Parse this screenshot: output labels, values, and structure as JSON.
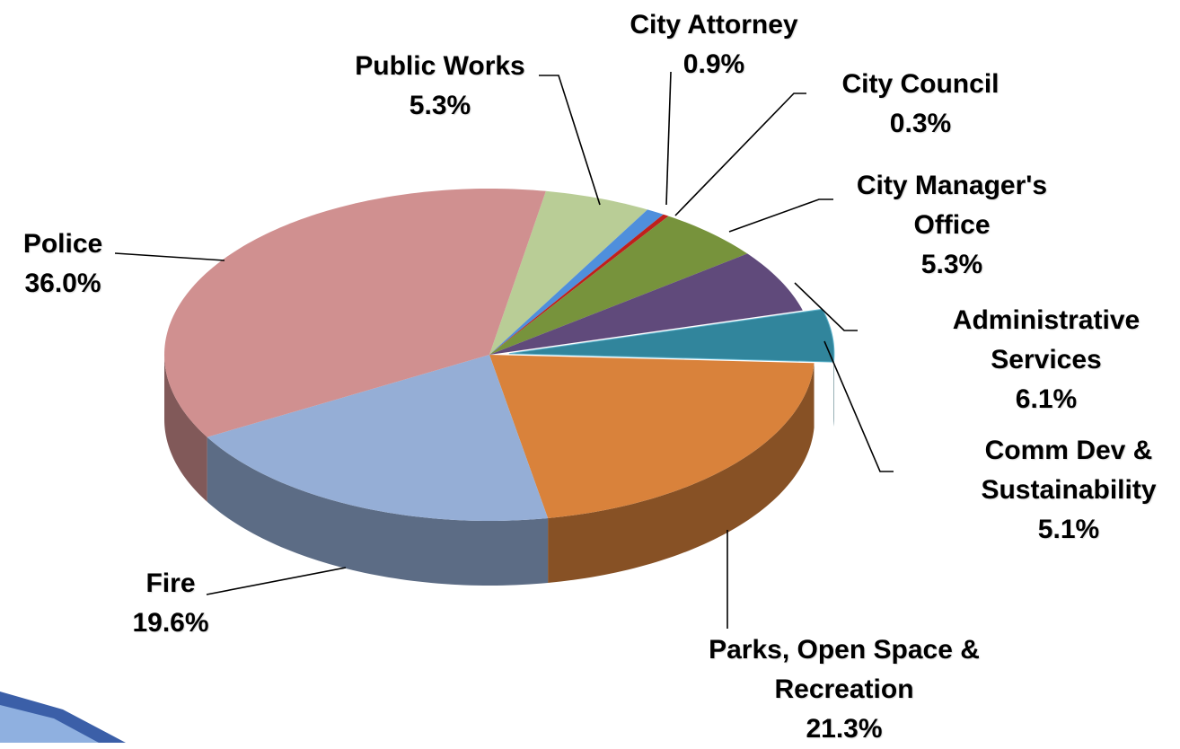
{
  "chart_data": {
    "type": "pie3d",
    "categories": [
      "Public Works",
      "City Attorney",
      "City Council",
      "City Manager's Office",
      "Administrative Services",
      "Comm Dev & Sustainability",
      "Parks, Open Space & Recreation",
      "Fire",
      "Police"
    ],
    "values": [
      5.3,
      0.9,
      0.3,
      5.3,
      6.1,
      5.1,
      21.3,
      19.6,
      36.0
    ],
    "value_labels": [
      "5.3%",
      "0.9%",
      "0.3%",
      "5.3%",
      "6.1%",
      "5.1%",
      "21.3%",
      "19.6%",
      "36.0%"
    ],
    "colors": [
      "#b9cd96",
      "#4f8fdc",
      "#c0201c",
      "#77933c",
      "#604a7b",
      "#31859c",
      "#d9823b",
      "#95aed6",
      "#d09090"
    ],
    "exploded": [
      false,
      false,
      false,
      false,
      false,
      true,
      false,
      false,
      false
    ]
  }
}
